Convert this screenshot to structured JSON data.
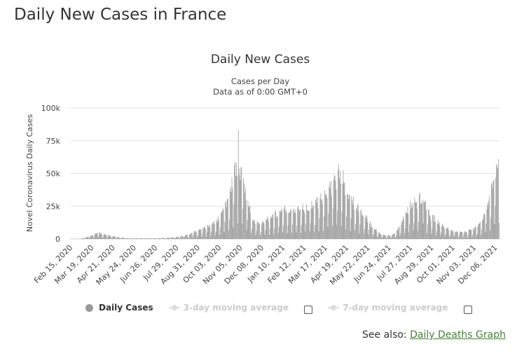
{
  "page": {
    "title": "Daily New Cases in France"
  },
  "legend": {
    "daily_cases": "Daily Cases",
    "ma3": "3-day moving average",
    "ma7": "7-day moving average"
  },
  "footer": {
    "see_also_label": "See also:",
    "link_text": "Daily Deaths Graph"
  },
  "chart_data": {
    "type": "bar",
    "title": "Daily New Cases",
    "subtitle_lines": [
      "Cases per Day",
      "Data as of 0:00 GMT+0"
    ],
    "ylabel": "Novel Coronavirus Daily Cases",
    "ylim": [
      0,
      100000
    ],
    "yticks": [
      0,
      25000,
      50000,
      75000,
      100000
    ],
    "ytick_labels": [
      "0",
      "25k",
      "50k",
      "75k",
      "100k"
    ],
    "x_start": "Feb 15, 2020",
    "x_end": "Dec 12, 2021",
    "x_tick_labels": [
      "Feb 15, 2020",
      "Mar 19, 2020",
      "Apr 21, 2020",
      "May 24, 2020",
      "Jun 26, 2020",
      "Jul 29, 2020",
      "Aug 31, 2020",
      "Oct 03, 2020",
      "Nov 05, 2020",
      "Dec 08, 2020",
      "Jan 10, 2021",
      "Feb 12, 2021",
      "Mar 17, 2021",
      "Apr 19, 2021",
      "May 22, 2021",
      "Jun 24, 2021",
      "Jul 27, 2021",
      "Aug 29, 2021",
      "Oct 01, 2021",
      "Nov 03, 2021",
      "Dec 06, 2021"
    ],
    "series": [
      {
        "name": "Daily Cases",
        "color": "#999999",
        "weekly_anchors": [
          [
            "Feb 15, 2020",
            0
          ],
          [
            "Mar 01, 2020",
            100
          ],
          [
            "Mar 15, 2020",
            1500
          ],
          [
            "Mar 29, 2020",
            4500
          ],
          [
            "Apr 05, 2020",
            3500
          ],
          [
            "Apr 19, 2020",
            2000
          ],
          [
            "May 03, 2020",
            900
          ],
          [
            "May 17, 2020",
            500
          ],
          [
            "Jun 07, 2020",
            400
          ],
          [
            "Jul 01, 2020",
            500
          ],
          [
            "Jul 29, 2020",
            1200
          ],
          [
            "Aug 15, 2020",
            2800
          ],
          [
            "Aug 31, 2020",
            5500
          ],
          [
            "Sep 15, 2020",
            8500
          ],
          [
            "Oct 01, 2020",
            12000
          ],
          [
            "Oct 15, 2020",
            25000
          ],
          [
            "Oct 25, 2020",
            40000
          ],
          [
            "Nov 01, 2020",
            50000
          ],
          [
            "Nov 07, 2020",
            45000
          ],
          [
            "Nov 15, 2020",
            28000
          ],
          [
            "Nov 25, 2020",
            12000
          ],
          [
            "Dec 08, 2020",
            11000
          ],
          [
            "Dec 20, 2020",
            14000
          ],
          [
            "Jan 10, 2021",
            19000
          ],
          [
            "Feb 12, 2021",
            20500
          ],
          [
            "Mar 01, 2021",
            22000
          ],
          [
            "Mar 17, 2021",
            30000
          ],
          [
            "Apr 01, 2021",
            40000
          ],
          [
            "Apr 10, 2021",
            42000
          ],
          [
            "Apr 19, 2021",
            34000
          ],
          [
            "May 01, 2021",
            24000
          ],
          [
            "May 15, 2021",
            16000
          ],
          [
            "May 30, 2021",
            8000
          ],
          [
            "Jun 10, 2021",
            3500
          ],
          [
            "Jun 24, 2021",
            2000
          ],
          [
            "Jul 05, 2021",
            4000
          ],
          [
            "Jul 15, 2021",
            12000
          ],
          [
            "Jul 27, 2021",
            22000
          ],
          [
            "Aug 10, 2021",
            26000
          ],
          [
            "Aug 20, 2021",
            22000
          ],
          [
            "Aug 29, 2021",
            15000
          ],
          [
            "Sep 10, 2021",
            10000
          ],
          [
            "Oct 01, 2021",
            5000
          ],
          [
            "Oct 20, 2021",
            4500
          ],
          [
            "Nov 03, 2021",
            6500
          ],
          [
            "Nov 15, 2021",
            12000
          ],
          [
            "Nov 25, 2021",
            24000
          ],
          [
            "Dec 06, 2021",
            42000
          ],
          [
            "Dec 12, 2021",
            50000
          ]
        ],
        "notable_peaks": [
          [
            "Nov 02, 2020",
            83000
          ],
          [
            "Oct 30, 2020",
            58000
          ],
          [
            "Apr 07, 2021",
            57000
          ],
          [
            "Dec 11, 2021",
            61000
          ],
          [
            "Aug 15, 2021",
            30000
          ]
        ]
      }
    ]
  }
}
